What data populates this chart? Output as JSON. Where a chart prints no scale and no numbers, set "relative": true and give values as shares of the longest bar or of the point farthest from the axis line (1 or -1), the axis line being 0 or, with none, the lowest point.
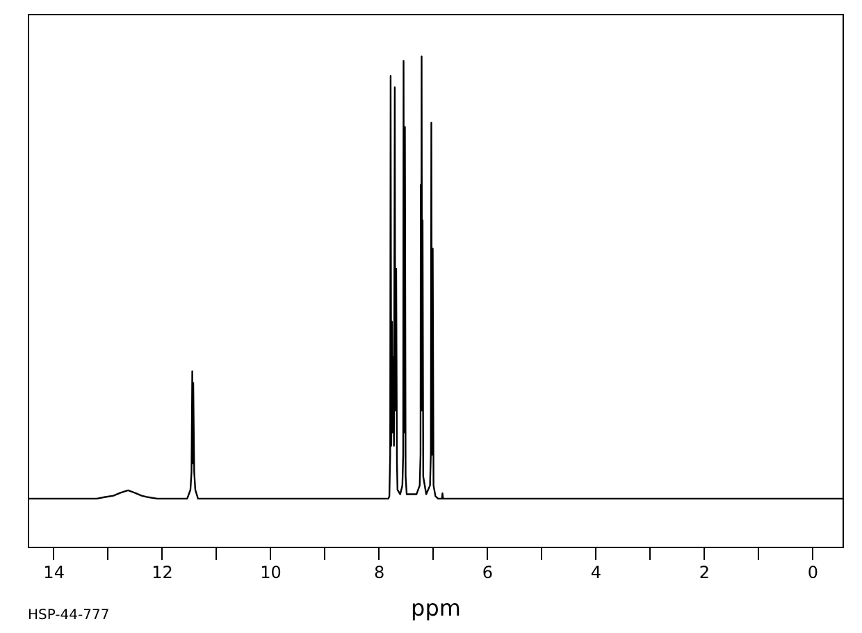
{
  "chart_data": {
    "type": "line",
    "xlabel": "ppm",
    "annotations": [
      "HSP-44-777"
    ],
    "relative": true,
    "color": "#000000",
    "x": [
      14.47,
      13.2,
      13.06,
      12.89,
      12.76,
      12.62,
      12.5,
      12.37,
      12.25,
      12.08,
      11.53,
      11.47,
      11.45,
      11.436,
      11.427,
      11.418,
      11.4,
      11.38,
      11.33,
      7.82,
      7.8,
      7.785,
      7.777,
      7.765,
      7.751,
      7.74,
      7.73,
      7.715,
      7.7,
      7.69,
      7.674,
      7.66,
      7.65,
      7.6,
      7.56,
      7.545,
      7.538,
      7.527,
      7.513,
      7.5,
      7.48,
      7.4,
      7.3,
      7.24,
      7.225,
      7.221,
      7.213,
      7.205,
      7.196,
      7.187,
      7.175,
      7.12,
      7.05,
      7.035,
      7.026,
      7.013,
      7.0,
      6.985,
      6.95,
      6.9,
      6.83,
      6.82,
      6.81,
      -0.56
    ],
    "values": [
      0.098,
      0.098,
      0.101,
      0.104,
      0.11,
      0.115,
      0.11,
      0.104,
      0.101,
      0.098,
      0.098,
      0.116,
      0.152,
      0.358,
      0.17,
      0.334,
      0.152,
      0.116,
      0.098,
      0.098,
      0.103,
      0.188,
      0.96,
      0.206,
      0.459,
      0.233,
      0.387,
      0.206,
      0.937,
      0.278,
      0.567,
      0.17,
      0.116,
      0.107,
      0.125,
      0.188,
      0.991,
      0.233,
      0.856,
      0.143,
      0.107,
      0.107,
      0.107,
      0.125,
      0.188,
      0.738,
      0.278,
      1.0,
      0.278,
      0.666,
      0.143,
      0.107,
      0.125,
      0.188,
      0.865,
      0.188,
      0.608,
      0.125,
      0.103,
      0.098,
      0.098,
      0.109,
      0.098,
      0.098
    ],
    "xlim": [
      14.47,
      -0.56
    ],
    "xticks": [
      14,
      {
        "value": 13,
        "label": null
      },
      12,
      {
        "value": 11,
        "label": null
      },
      10,
      {
        "value": 9,
        "label": null
      },
      8,
      {
        "value": 7,
        "label": null
      },
      6,
      {
        "value": 5,
        "label": null
      },
      4,
      {
        "value": 3,
        "label": null
      },
      2,
      {
        "value": 1,
        "label": null
      },
      0
    ]
  }
}
